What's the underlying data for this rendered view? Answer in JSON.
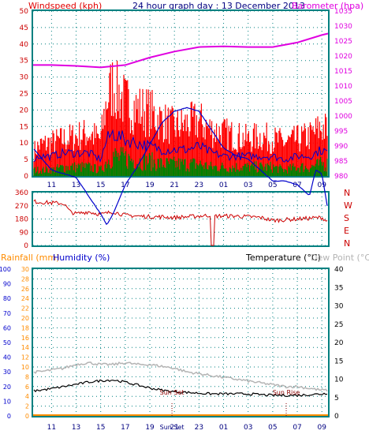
{
  "header": {
    "windspeed_label": "Windspeed (kph)",
    "title": "24 hour graph day : 13 December 2013",
    "barometer_label": "Barometer (hpa)"
  },
  "colors": {
    "wind_red": "#ff0000",
    "wind_blue": "#0000cc",
    "wind_green": "#008000",
    "barometer": "#e000e0",
    "direction": "#cc0000",
    "humidity": "#0000cc",
    "temperature": "#000000",
    "dewpoint": "#b4b4b4",
    "rainfall": "#ff8c00",
    "axis_panel": "#008080",
    "grid": "#008080"
  },
  "x_ticks": [
    "11",
    "13",
    "15",
    "17",
    "19",
    "21",
    "23",
    "01",
    "03",
    "05",
    "07",
    "09"
  ],
  "chart_data": [
    {
      "type": "line",
      "name": "wind_barometer",
      "y_left": {
        "label": "Windspeed (kph)",
        "min": 0,
        "max": 50,
        "ticks": [
          0,
          5,
          10,
          15,
          20,
          25,
          30,
          35,
          40,
          45,
          50
        ]
      },
      "y_right": {
        "label": "Barometer (hpa)",
        "min": 980,
        "max": 1035,
        "ticks": [
          980,
          985,
          990,
          995,
          1000,
          1005,
          1010,
          1015,
          1020,
          1025,
          1030,
          1035
        ]
      },
      "series": [
        {
          "name": "gust",
          "color": "#ff0000",
          "x_hours": [
            9.5,
            10,
            11,
            12,
            13,
            14,
            15,
            15.5,
            16,
            16.5,
            17,
            18,
            19,
            20,
            21,
            22,
            23,
            24,
            25,
            26,
            27,
            28,
            29,
            30,
            31,
            32,
            33,
            33.5
          ],
          "values": [
            8,
            10,
            11,
            12,
            13,
            14,
            12,
            25,
            30,
            27,
            24,
            22,
            21,
            18,
            16,
            17,
            18,
            15,
            14,
            13,
            12,
            13,
            12,
            11,
            12,
            13,
            16,
            15
          ]
        },
        {
          "name": "average",
          "color": "#0000cc",
          "x_hours": [
            9.5,
            10,
            11,
            12,
            13,
            14,
            15,
            15.5,
            16,
            16.5,
            17,
            18,
            19,
            20,
            21,
            22,
            23,
            24,
            25,
            26,
            27,
            28,
            29,
            30,
            31,
            32,
            33,
            33.5
          ],
          "values": [
            5,
            6,
            6,
            7,
            7,
            7,
            5,
            11,
            13,
            12,
            11,
            10,
            9,
            8,
            8,
            8,
            9,
            7,
            6,
            6,
            6,
            6,
            6,
            5,
            6,
            6,
            8,
            7
          ]
        },
        {
          "name": "minimum",
          "color": "#008000",
          "x_hours": [
            9.5,
            10,
            11,
            12,
            13,
            14,
            15,
            15.5,
            16,
            16.5,
            17,
            18,
            19,
            20,
            21,
            22,
            23,
            24,
            25,
            26,
            27,
            28,
            29,
            30,
            31,
            32,
            33,
            33.5
          ],
          "values": [
            2,
            2,
            2,
            3,
            3,
            3,
            2,
            5,
            7,
            6,
            6,
            5,
            5,
            4,
            4,
            4,
            4,
            3,
            3,
            3,
            3,
            3,
            3,
            2,
            3,
            3,
            4,
            4
          ]
        },
        {
          "name": "barometer",
          "axis": "right",
          "color": "#e000e0",
          "x_hours": [
            9.5,
            11,
            13,
            15,
            17,
            19,
            21,
            23,
            25,
            27,
            29,
            31,
            33,
            33.5
          ],
          "values": [
            1017,
            1017,
            1016.7,
            1016.2,
            1017,
            1019.5,
            1021.5,
            1023,
            1023.2,
            1023,
            1023,
            1024.5,
            1027,
            1027.5
          ]
        }
      ]
    },
    {
      "type": "scatter",
      "name": "wind_direction",
      "y_left": {
        "min": 0,
        "max": 360,
        "ticks": [
          0,
          90,
          180,
          270,
          360
        ]
      },
      "y_right_labels": [
        "N",
        "W",
        "S",
        "E",
        "N"
      ],
      "series": [
        {
          "name": "direction",
          "color": "#cc0000",
          "x_hours": [
            9.5,
            10,
            11,
            12,
            12.5,
            13,
            14,
            15,
            16,
            17,
            18,
            19,
            20,
            21,
            22,
            23,
            24,
            24.1,
            24.2,
            25,
            26,
            27,
            28,
            29,
            30,
            31,
            32,
            33,
            33.5
          ],
          "values": [
            300,
            295,
            290,
            285,
            230,
            215,
            230,
            210,
            230,
            205,
            200,
            195,
            195,
            190,
            195,
            200,
            205,
            0,
            200,
            200,
            200,
            195,
            190,
            170,
            175,
            180,
            185,
            190,
            160
          ]
        }
      ]
    },
    {
      "type": "line",
      "name": "rain_humidity_temperature",
      "legend": [
        "Rainfall (mm)",
        "Humidity (%)",
        "Temperature (°C)",
        "Dew Point (°C)"
      ],
      "y_humidity": {
        "min": 0,
        "max": 100,
        "ticks": [
          0,
          10,
          20,
          30,
          40,
          50,
          60,
          70,
          80,
          90,
          100
        ]
      },
      "y_rain": {
        "min": 0,
        "max": 30,
        "ticks": [
          0,
          2,
          4,
          6,
          8,
          10,
          12,
          14,
          16,
          18,
          20,
          22,
          24,
          26,
          28,
          30
        ]
      },
      "y_temperature": {
        "min": 0,
        "max": 40,
        "ticks": [
          0,
          5,
          10,
          15,
          20,
          25,
          30,
          35,
          40
        ]
      },
      "annotations": [
        {
          "text": "Sun Set",
          "x_hour": 20.8
        },
        {
          "text": "Sun Rise",
          "x_hour": 30.1
        }
      ],
      "x_extra_label": "Sun Set",
      "series": [
        {
          "name": "humidity",
          "color": "#0000cc",
          "x_hours": [
            9.5,
            10,
            11,
            12,
            13,
            14,
            15,
            15.5,
            16,
            17,
            18,
            19,
            20,
            21,
            22,
            23,
            24,
            25,
            26,
            27,
            28,
            29,
            30,
            31,
            32,
            32.5,
            33,
            33.5
          ],
          "values": [
            73,
            71,
            67,
            66,
            65,
            60,
            55,
            52,
            55,
            63,
            68,
            74,
            80,
            83,
            84,
            83,
            78,
            73,
            71,
            70,
            67,
            64,
            64,
            63,
            60,
            67,
            66,
            56
          ]
        },
        {
          "name": "temperature",
          "color": "#000000",
          "x_hours": [
            9.5,
            10,
            11,
            12,
            13,
            14,
            15,
            16,
            17,
            18,
            19,
            20,
            21,
            22,
            23,
            24,
            25,
            26,
            27,
            28,
            29,
            30,
            31,
            32,
            33,
            33.5
          ],
          "values": [
            17,
            17.5,
            18.5,
            20,
            21.5,
            23,
            24,
            24.5,
            23,
            21,
            19,
            17.5,
            16.5,
            16,
            15.5,
            15,
            15,
            15,
            15,
            14.5,
            14,
            14,
            14,
            14.5,
            15,
            15.5
          ]
        },
        {
          "name": "dew_point",
          "color": "#b4b4b4",
          "x_hours": [
            9.5,
            10,
            11,
            12,
            13,
            14,
            15,
            16,
            17,
            18,
            19,
            20,
            21,
            22,
            23,
            24,
            25,
            26,
            27,
            28,
            29,
            30,
            31,
            32,
            33,
            33.5
          ],
          "values": [
            12,
            12,
            12.5,
            13,
            14,
            14.5,
            14,
            14,
            14.5,
            14,
            14,
            13.5,
            13,
            12,
            11.5,
            11,
            10.5,
            10,
            9.5,
            9,
            8.5,
            8,
            8,
            7.5,
            7,
            7
          ]
        },
        {
          "name": "rainfall",
          "color": "#ff8c00",
          "x_hours": [
            9.5,
            33.5
          ],
          "values": [
            0,
            0
          ]
        }
      ]
    }
  ]
}
